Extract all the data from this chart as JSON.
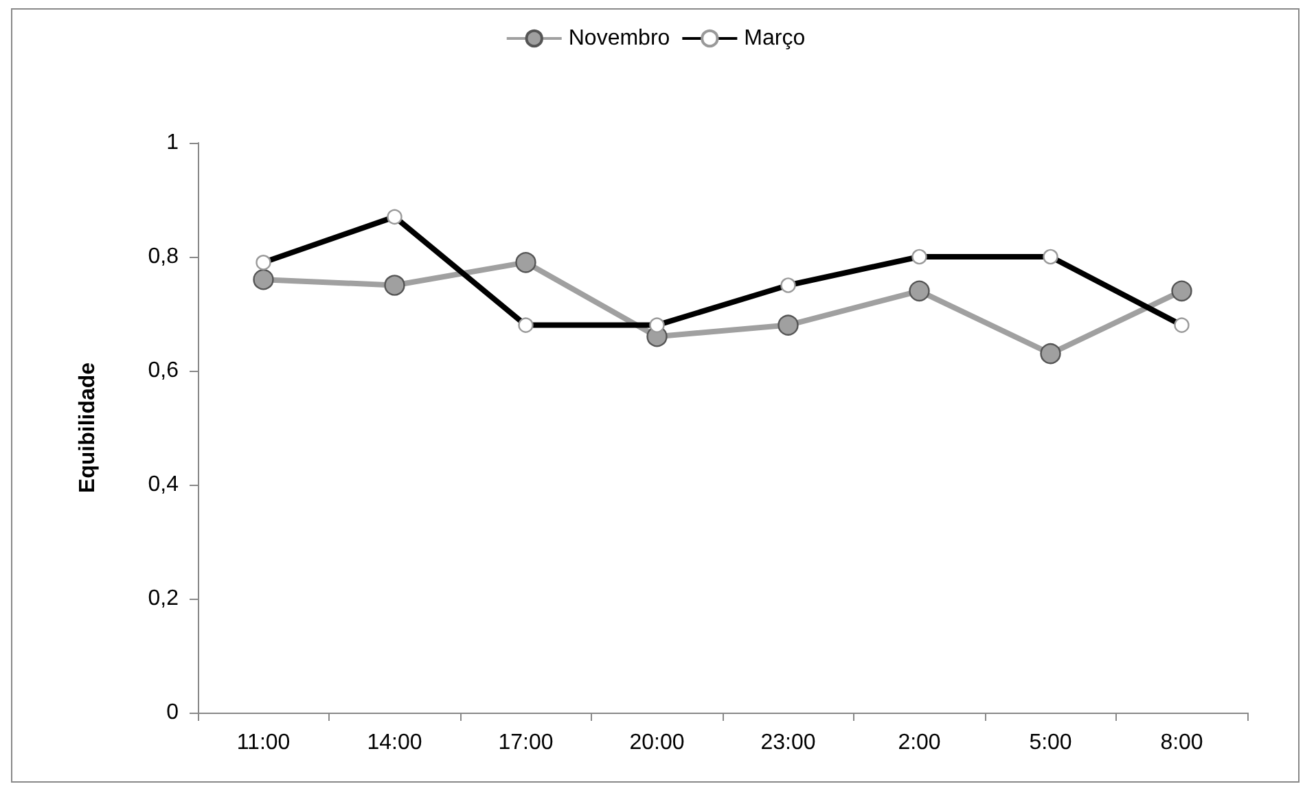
{
  "chart_data": {
    "type": "line",
    "ylabel": "Equibilidade",
    "categories": [
      "11:00",
      "14:00",
      "17:00",
      "20:00",
      "23:00",
      "2:00",
      "5:00",
      "8:00"
    ],
    "series": [
      {
        "name": "Novembro",
        "color": "#a0a0a0",
        "values": [
          0.76,
          0.75,
          0.79,
          0.66,
          0.68,
          0.74,
          0.63,
          0.74
        ]
      },
      {
        "name": "Março",
        "color": "#000000",
        "values": [
          0.79,
          0.87,
          0.68,
          0.68,
          0.75,
          0.8,
          0.8,
          0.68
        ]
      }
    ],
    "ylim": [
      0,
      1
    ],
    "yticks": [
      {
        "value": 0,
        "label": "0"
      },
      {
        "value": 0.2,
        "label": "0,2"
      },
      {
        "value": 0.4,
        "label": "0,4"
      },
      {
        "value": 0.6,
        "label": "0,6"
      },
      {
        "value": 0.8,
        "label": "0,8"
      },
      {
        "value": 1,
        "label": "1"
      }
    ],
    "grid": false,
    "legend": "top",
    "marker": "circle",
    "line_style": "solid"
  }
}
